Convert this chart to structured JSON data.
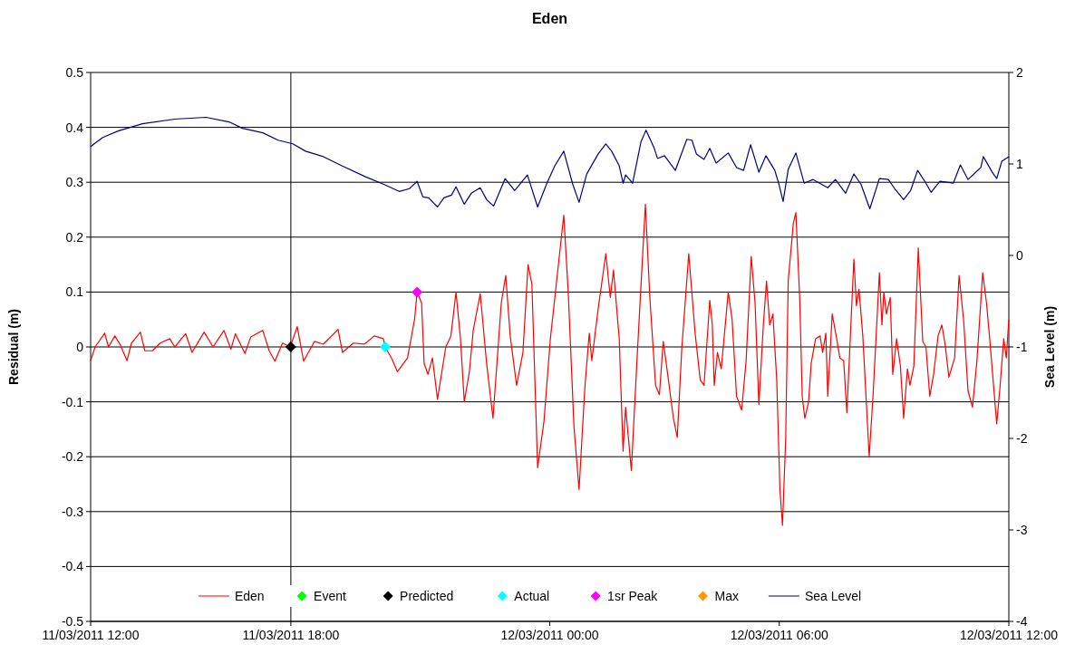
{
  "chart_data": {
    "type": "line",
    "title": "Eden",
    "ylabel": "Residual (m)",
    "y2label": "Sea Level (m)",
    "xlim": [
      "2011-03-11T12:00",
      "2011-03-12T12:00"
    ],
    "xticks": [
      {
        "value": "2011-03-11T12:00",
        "label": "11/03/2011 12:00"
      },
      {
        "value": "2011-03-11T17:14",
        "label": "11/03/2011 18:00"
      },
      {
        "value": "2011-03-12T00:00",
        "label": "12/03/2011 00:00"
      },
      {
        "value": "2011-03-12T06:00",
        "label": "12/03/2011 06:00"
      },
      {
        "value": "2011-03-12T12:00",
        "label": "12/03/2011 12:00"
      }
    ],
    "ylim": [
      -0.5,
      0.5
    ],
    "yticks": [
      -0.5,
      -0.4,
      -0.3,
      -0.2,
      -0.1,
      0,
      0.1,
      0.2,
      0.3,
      0.4,
      0.5
    ],
    "y2lim": [
      -4,
      2
    ],
    "y2ticks": [
      -4,
      -3,
      -2,
      -1,
      0,
      1,
      2
    ],
    "grid": "y",
    "legend": "bottom",
    "ref_lines": [
      {
        "axis": "x",
        "value": "2011-03-11T17:14",
        "color": "#000000"
      }
    ],
    "series": [
      {
        "name": "Eden",
        "color": "#ff0000",
        "x": [
          "2011-03-11T12:00",
          "2011-03-11T12:07",
          "2011-03-11T12:22",
          "2011-03-11T12:28",
          "2011-03-11T12:38",
          "2011-03-11T12:46",
          "2011-03-11T12:57",
          "2011-03-11T13:04",
          "2011-03-11T13:18",
          "2011-03-11T13:25",
          "2011-03-11T13:37",
          "2011-03-11T13:49",
          "2011-03-11T14:04",
          "2011-03-11T14:12",
          "2011-03-11T14:29",
          "2011-03-11T14:39",
          "2011-03-11T14:58",
          "2011-03-11T15:12",
          "2011-03-11T15:29",
          "2011-03-11T15:40",
          "2011-03-11T15:47",
          "2011-03-11T16:02",
          "2011-03-11T16:11",
          "2011-03-11T16:30",
          "2011-03-11T16:40",
          "2011-03-11T16:49",
          "2011-03-11T17:01",
          "2011-03-11T17:13",
          "2011-03-11T17:24",
          "2011-03-11T17:34",
          "2011-03-11T17:51",
          "2011-03-11T18:05",
          "2011-03-11T18:28",
          "2011-03-11T18:35",
          "2011-03-11T18:52",
          "2011-03-11T19:09",
          "2011-03-11T19:25",
          "2011-03-11T19:39",
          "2011-03-11T19:42",
          "2011-03-11T19:53",
          "2011-03-11T20:01",
          "2011-03-11T20:17",
          "2011-03-11T20:28",
          "2011-03-11T20:32",
          "2011-03-11T20:39",
          "2011-03-11T20:43",
          "2011-03-11T20:49",
          "2011-03-11T20:56",
          "2011-03-11T21:04",
          "2011-03-11T21:17",
          "2011-03-11T21:25",
          "2011-03-11T21:33",
          "2011-03-11T21:40",
          "2011-03-11T21:46",
          "2011-03-11T21:54",
          "2011-03-11T22:00",
          "2011-03-11T22:11",
          "2011-03-11T22:21",
          "2011-03-11T22:31",
          "2011-03-11T22:44",
          "2011-03-11T22:51",
          "2011-03-11T22:58",
          "2011-03-11T23:08",
          "2011-03-11T23:18",
          "2011-03-11T23:26",
          "2011-03-11T23:32",
          "2011-03-11T23:41",
          "2011-03-11T23:51",
          "2011-03-12T00:01",
          "2011-03-12T00:08",
          "2011-03-12T00:22",
          "2011-03-12T00:29",
          "2011-03-12T00:38",
          "2011-03-12T00:46",
          "2011-03-12T00:55",
          "2011-03-12T01:02",
          "2011-03-12T01:06",
          "2011-03-12T01:16",
          "2011-03-12T01:28",
          "2011-03-12T01:35",
          "2011-03-12T01:40",
          "2011-03-12T01:49",
          "2011-03-12T01:55",
          "2011-03-12T01:59",
          "2011-03-12T02:08",
          "2011-03-12T02:17",
          "2011-03-12T02:30",
          "2011-03-12T02:37",
          "2011-03-12T02:46",
          "2011-03-12T02:52",
          "2011-03-12T02:58",
          "2011-03-12T03:05",
          "2011-03-12T03:14",
          "2011-03-12T03:20",
          "2011-03-12T03:27",
          "2011-03-12T03:38",
          "2011-03-12T03:48",
          "2011-03-12T03:56",
          "2011-03-12T04:02",
          "2011-03-12T04:11",
          "2011-03-12T04:15",
          "2011-03-12T04:18",
          "2011-03-12T04:23",
          "2011-03-12T04:29",
          "2011-03-12T04:40",
          "2011-03-12T04:46",
          "2011-03-12T04:53",
          "2011-03-12T05:01",
          "2011-03-12T05:08",
          "2011-03-12T05:16",
          "2011-03-12T05:22",
          "2011-03-12T05:28",
          "2011-03-12T05:35",
          "2011-03-12T05:40",
          "2011-03-12T05:45",
          "2011-03-12T05:50",
          "2011-03-12T05:56",
          "2011-03-12T06:01",
          "2011-03-12T06:05",
          "2011-03-12T06:10",
          "2011-03-12T06:14",
          "2011-03-12T06:22",
          "2011-03-12T06:26",
          "2011-03-12T06:32",
          "2011-03-12T06:36",
          "2011-03-12T06:40",
          "2011-03-12T06:46",
          "2011-03-12T06:50",
          "2011-03-12T06:57",
          "2011-03-12T07:04",
          "2011-03-12T07:08",
          "2011-03-12T07:13",
          "2011-03-12T07:16",
          "2011-03-12T07:23",
          "2011-03-12T07:30",
          "2011-03-12T07:35",
          "2011-03-12T07:41",
          "2011-03-12T07:46",
          "2011-03-12T07:57",
          "2011-03-12T08:01",
          "2011-03-12T08:05",
          "2011-03-12T08:11",
          "2011-03-12T08:21",
          "2011-03-12T08:27",
          "2011-03-12T08:37",
          "2011-03-12T08:41",
          "2011-03-12T08:44",
          "2011-03-12T08:48",
          "2011-03-12T08:54",
          "2011-03-12T08:58",
          "2011-03-12T09:04",
          "2011-03-12T09:10",
          "2011-03-12T09:15",
          "2011-03-12T09:21",
          "2011-03-12T09:25",
          "2011-03-12T09:31",
          "2011-03-12T09:38",
          "2011-03-12T09:45",
          "2011-03-12T09:50",
          "2011-03-12T09:56",
          "2011-03-12T10:02",
          "2011-03-12T10:09",
          "2011-03-12T10:15",
          "2011-03-12T10:20",
          "2011-03-12T10:26",
          "2011-03-12T10:35",
          "2011-03-12T10:42",
          "2011-03-12T10:49",
          "2011-03-12T10:56",
          "2011-03-12T11:03",
          "2011-03-12T11:10",
          "2011-03-12T11:19",
          "2011-03-12T11:25",
          "2011-03-12T11:30",
          "2011-03-12T11:36",
          "2011-03-12T11:41",
          "2011-03-12T11:46",
          "2011-03-12T11:52",
          "2011-03-12T11:56",
          "2011-03-12T12:00"
        ],
        "values": [
          -0.025,
          0,
          0.025,
          0,
          0.02,
          0.005,
          -0.025,
          0.007,
          0.027,
          -0.007,
          -0.007,
          0.007,
          0.015,
          0,
          0.024,
          -0.01,
          0.027,
          0,
          0.03,
          -0.004,
          0.024,
          -0.012,
          0.018,
          0.03,
          -0.007,
          -0.026,
          0.007,
          0,
          0.037,
          -0.026,
          0.01,
          0.005,
          0.032,
          -0.01,
          0.007,
          0.005,
          0.02,
          0.015,
          0,
          -0.023,
          -0.045,
          -0.02,
          0.05,
          0.1,
          0.08,
          -0.03,
          -0.05,
          -0.02,
          -0.095,
          0,
          0.02,
          0.1,
          0.015,
          -0.1,
          -0.045,
          0.03,
          0.097,
          -0.03,
          -0.13,
          0.08,
          0.13,
          0.02,
          -0.07,
          -0.01,
          0.15,
          0.115,
          -0.22,
          -0.135,
          0.015,
          0.09,
          0.24,
          0.1,
          -0.145,
          -0.26,
          -0.075,
          0.025,
          -0.025,
          0.07,
          0.17,
          0.09,
          0.14,
          0.015,
          -0.19,
          -0.11,
          -0.225,
          -0.02,
          0.26,
          0.09,
          -0.07,
          -0.087,
          0.01,
          -0.05,
          -0.13,
          -0.165,
          -0.005,
          0.17,
          0.025,
          -0.06,
          -0.07,
          0.085,
          0.04,
          -0.07,
          -0.01,
          -0.04,
          0.1,
          0.05,
          -0.09,
          -0.115,
          -0.025,
          0.165,
          0.08,
          -0.105,
          0.04,
          0.12,
          0.04,
          0.06,
          -0.06,
          -0.26,
          -0.325,
          -0.17,
          0.12,
          0.225,
          0.245,
          0.09,
          -0.09,
          -0.13,
          -0.1,
          -0.03,
          0.015,
          0.02,
          -0.01,
          0.025,
          -0.09,
          0.06,
          0.015,
          -0.02,
          -0.025,
          -0.12,
          0.16,
          0.075,
          0.105,
          0.02,
          -0.2,
          -0.09,
          0.135,
          0.04,
          0.1,
          0.06,
          0.09,
          -0.05,
          0.015,
          -0.035,
          -0.13,
          -0.04,
          -0.07,
          -0.035,
          0.18,
          0.01,
          0,
          -0.09,
          -0.05,
          0.02,
          0.04,
          0.005,
          -0.055,
          -0.02,
          0.13,
          0.05,
          -0.08,
          -0.11,
          -0.025,
          0.135,
          0.08,
          0.015,
          -0.07,
          -0.14,
          -0.075,
          0.015,
          -0.02,
          0.05
        ]
      },
      {
        "name": "Event",
        "type": "scatter",
        "color": "#00ff00",
        "marker": "diamond"
      },
      {
        "name": "Predicted",
        "type": "scatter",
        "color": "#000000",
        "marker": "diamond",
        "x": [
          "2011-03-11T17:14"
        ],
        "values": [
          0
        ]
      },
      {
        "name": "Actual",
        "type": "scatter",
        "color": "#00ffff",
        "marker": "diamond",
        "x": [
          "2011-03-11T19:42"
        ],
        "values": [
          0
        ]
      },
      {
        "name": "1sr Peak",
        "type": "scatter",
        "color": "#ff00ff",
        "marker": "diamond",
        "x": [
          "2011-03-11T20:32"
        ],
        "values": [
          0.1
        ]
      },
      {
        "name": "Max",
        "type": "scatter",
        "color": "#ff9900",
        "marker": "diamond"
      },
      {
        "name": "Sea Level",
        "color": "#000080",
        "axis": "y2",
        "x": [
          "2011-03-11T12:00",
          "2011-03-11T12:19",
          "2011-03-11T12:43",
          "2011-03-11T13:21",
          "2011-03-11T14:12",
          "2011-03-11T15:01",
          "2011-03-11T15:37",
          "2011-03-11T15:58",
          "2011-03-11T16:30",
          "2011-03-11T16:54",
          "2011-03-11T17:17",
          "2011-03-11T17:37",
          "2011-03-11T18:05",
          "2011-03-11T18:34",
          "2011-03-11T19:11",
          "2011-03-11T19:39",
          "2011-03-11T20:04",
          "2011-03-11T20:20",
          "2011-03-11T20:32",
          "2011-03-11T20:41",
          "2011-03-11T20:50",
          "2011-03-11T21:04",
          "2011-03-11T21:14",
          "2011-03-11T21:26",
          "2011-03-11T21:33",
          "2011-03-11T21:46",
          "2011-03-11T21:57",
          "2011-03-11T22:11",
          "2011-03-11T22:21",
          "2011-03-11T22:32",
          "2011-03-11T22:50",
          "2011-03-11T23:05",
          "2011-03-11T23:25",
          "2011-03-11T23:41",
          "2011-03-11T23:55",
          "2011-03-12T00:08",
          "2011-03-12T00:22",
          "2011-03-12T00:36",
          "2011-03-12T00:46",
          "2011-03-12T00:58",
          "2011-03-12T01:16",
          "2011-03-12T01:28",
          "2011-03-12T01:37",
          "2011-03-12T01:49",
          "2011-03-12T01:55",
          "2011-03-12T01:59",
          "2011-03-12T02:10",
          "2011-03-12T02:23",
          "2011-03-12T02:31",
          "2011-03-12T02:44",
          "2011-03-12T02:49",
          "2011-03-12T03:00",
          "2011-03-12T03:17",
          "2011-03-12T03:35",
          "2011-03-12T03:43",
          "2011-03-12T03:50",
          "2011-03-12T04:02",
          "2011-03-12T04:11",
          "2011-03-12T04:21",
          "2011-03-12T04:40",
          "2011-03-12T04:53",
          "2011-03-12T05:04",
          "2011-03-12T05:15",
          "2011-03-12T05:28",
          "2011-03-12T05:39",
          "2011-03-12T05:53",
          "2011-03-12T05:59",
          "2011-03-12T06:06",
          "2011-03-12T06:14",
          "2011-03-12T06:26",
          "2011-03-12T06:39",
          "2011-03-12T06:53",
          "2011-03-12T07:16",
          "2011-03-12T07:28",
          "2011-03-12T07:44",
          "2011-03-12T07:57",
          "2011-03-12T08:08",
          "2011-03-12T08:22",
          "2011-03-12T08:37",
          "2011-03-12T08:51",
          "2011-03-12T09:01",
          "2011-03-12T09:15",
          "2011-03-12T09:26",
          "2011-03-12T09:37",
          "2011-03-12T09:50",
          "2011-03-12T09:58",
          "2011-03-12T10:12",
          "2011-03-12T10:33",
          "2011-03-12T10:44",
          "2011-03-12T10:56",
          "2011-03-12T11:16",
          "2011-03-12T11:20",
          "2011-03-12T11:34",
          "2011-03-12T11:41",
          "2011-03-12T11:49",
          "2011-03-12T12:00"
        ],
        "values": [
          1.19,
          1.29,
          1.36,
          1.44,
          1.49,
          1.51,
          1.46,
          1.39,
          1.34,
          1.26,
          1.22,
          1.14,
          1.08,
          0.98,
          0.86,
          0.78,
          0.7,
          0.73,
          0.81,
          0.64,
          0.63,
          0.53,
          0.63,
          0.66,
          0.75,
          0.56,
          0.68,
          0.74,
          0.61,
          0.54,
          0.84,
          0.71,
          0.88,
          0.53,
          0.78,
          0.98,
          1.14,
          0.78,
          0.58,
          0.89,
          1.11,
          1.22,
          1.14,
          0.98,
          0.79,
          0.88,
          0.79,
          1.24,
          1.37,
          1.17,
          1.06,
          1.09,
          0.93,
          1.27,
          1.26,
          1.11,
          1.05,
          1.17,
          1.01,
          1.12,
          0.96,
          0.93,
          1.21,
          0.91,
          1.09,
          0.93,
          0.79,
          0.59,
          0.94,
          1.12,
          0.79,
          0.83,
          0.74,
          0.83,
          0.68,
          0.89,
          0.78,
          0.51,
          0.84,
          0.83,
          0.73,
          0.61,
          0.71,
          0.93,
          0.79,
          0.69,
          0.81,
          0.79,
          0.99,
          0.83,
          0.96,
          1.08,
          0.91,
          0.84,
          1.03,
          1.08
        ]
      }
    ]
  }
}
